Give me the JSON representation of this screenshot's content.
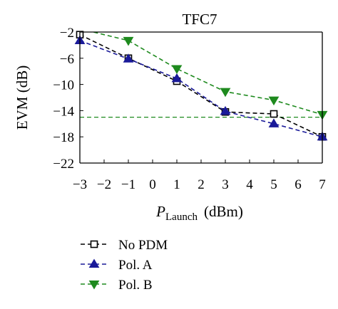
{
  "chart_data": {
    "type": "line",
    "title": "TFC7",
    "ylabel": "EVM (dB)",
    "xlabel_main": "P",
    "xlabel_sub": "Launch",
    "xlabel_unit": "(dBm)",
    "xlim": [
      -3,
      7
    ],
    "ylim": [
      -22,
      -2
    ],
    "x_ticks": [
      -3,
      -2,
      -1,
      0,
      1,
      2,
      3,
      4,
      5,
      6,
      7
    ],
    "x_tick_labels": [
      "−3",
      "−2",
      "−1",
      "0",
      "1",
      "2",
      "3",
      "4",
      "5",
      "6",
      "7"
    ],
    "y_ticks": [
      -2,
      -6,
      -10,
      -14,
      -18,
      -22
    ],
    "y_tick_labels": [
      "−2",
      "−6",
      "−10",
      "−14",
      "−18",
      "−22"
    ],
    "grid": false,
    "legend_position": "below",
    "x": [
      -3,
      -1,
      1,
      3,
      5,
      7
    ],
    "series": [
      {
        "name": "No PDM",
        "marker": "square-open",
        "color": "#000000",
        "values": [
          -2.4,
          -6.0,
          -9.5,
          -14.2,
          -14.5,
          -18.0
        ]
      },
      {
        "name": "Pol. A",
        "marker": "triangle-up",
        "color": "#1a1a99",
        "values": [
          -3.3,
          -6.1,
          -9.1,
          -14.1,
          -16.0,
          -18.0
        ]
      },
      {
        "name": "Pol. B",
        "marker": "triangle-down",
        "color": "#1e8a1e",
        "values": [
          -1.5,
          -3.3,
          -7.6,
          -11.1,
          -12.4,
          -14.6
        ]
      }
    ],
    "reference_line": {
      "y": -15,
      "color": "#1e8a1e",
      "style": "dashed"
    }
  }
}
